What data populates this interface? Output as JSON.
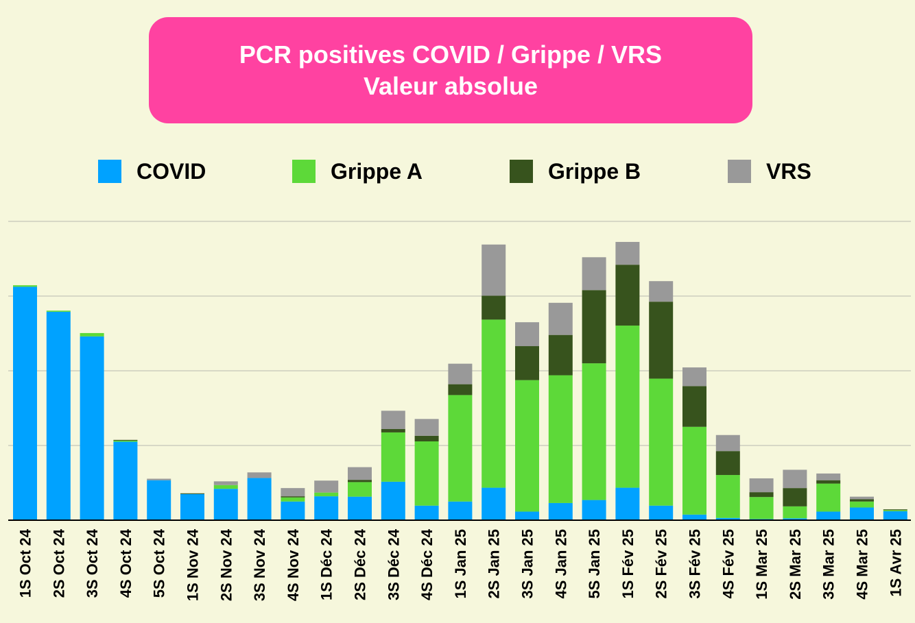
{
  "title": {
    "line1": "PCR positives COVID / Grippe / VRS",
    "line2": "Valeur absolue"
  },
  "legend": [
    {
      "label": "COVID",
      "color": "#00a2ff"
    },
    {
      "label": "Grippe A",
      "color": "#5dd939"
    },
    {
      "label": "Grippe B",
      "color": "#37531d"
    },
    {
      "label": "VRS",
      "color": "#999999"
    }
  ],
  "chart_data": {
    "type": "bar",
    "stacked": true,
    "grid": true,
    "ylim": [
      0,
      8
    ],
    "categories": [
      "1S Oct 24",
      "2S Oct 24",
      "3S Oct 24",
      "4S Oct 24",
      "5S Oct 24",
      "1S Nov 24",
      "2S Nov 24",
      "3S Nov 24",
      "4S Nov 24",
      "1S Déc 24",
      "2S Déc 24",
      "3S Déc 24",
      "4S Déc 24",
      "1S Jan 25",
      "2S Jan 25",
      "3S Jan 25",
      "4S Jan 25",
      "5S Jan 25",
      "1S Fév 25",
      "2S Fév 25",
      "3S Fév 25",
      "4S Fév 25",
      "1S Mar 25",
      "2S Mar 25",
      "3S Mar 25",
      "4S Mar 25",
      "1S Avr 25"
    ],
    "series": [
      {
        "name": "COVID",
        "color": "#00a2ff",
        "values": [
          6.25,
          5.58,
          4.92,
          2.1,
          1.07,
          0.7,
          0.84,
          1.13,
          0.5,
          0.64,
          0.63,
          1.03,
          0.39,
          0.5,
          0.87,
          0.23,
          0.46,
          0.54,
          0.87,
          0.39,
          0.15,
          0.06,
          0.03,
          0.05,
          0.23,
          0.34,
          0.24
        ]
      },
      {
        "name": "Grippe A",
        "color": "#5dd939",
        "values": [
          0.04,
          0.03,
          0.09,
          0.03,
          0.0,
          0.0,
          0.1,
          0.0,
          0.11,
          0.1,
          0.39,
          1.32,
          1.72,
          2.85,
          4.5,
          3.52,
          3.42,
          3.66,
          4.34,
          3.4,
          2.35,
          1.15,
          0.59,
          0.32,
          0.75,
          0.16,
          0.03
        ]
      },
      {
        "name": "Grippe B",
        "color": "#37531d",
        "values": [
          0.0,
          0.0,
          0.0,
          0.02,
          0.0,
          0.02,
          0.0,
          0.0,
          0.03,
          0.0,
          0.06,
          0.09,
          0.15,
          0.29,
          0.64,
          0.91,
          1.08,
          1.96,
          1.63,
          2.06,
          1.09,
          0.64,
          0.13,
          0.49,
          0.09,
          0.06,
          0.02
        ]
      },
      {
        "name": "VRS",
        "color": "#999999",
        "values": [
          0.0,
          0.0,
          0.0,
          0.0,
          0.04,
          0.0,
          0.1,
          0.15,
          0.22,
          0.32,
          0.34,
          0.49,
          0.45,
          0.55,
          1.37,
          0.64,
          0.86,
          0.88,
          0.61,
          0.55,
          0.5,
          0.43,
          0.37,
          0.49,
          0.18,
          0.07,
          0.0
        ]
      }
    ]
  }
}
